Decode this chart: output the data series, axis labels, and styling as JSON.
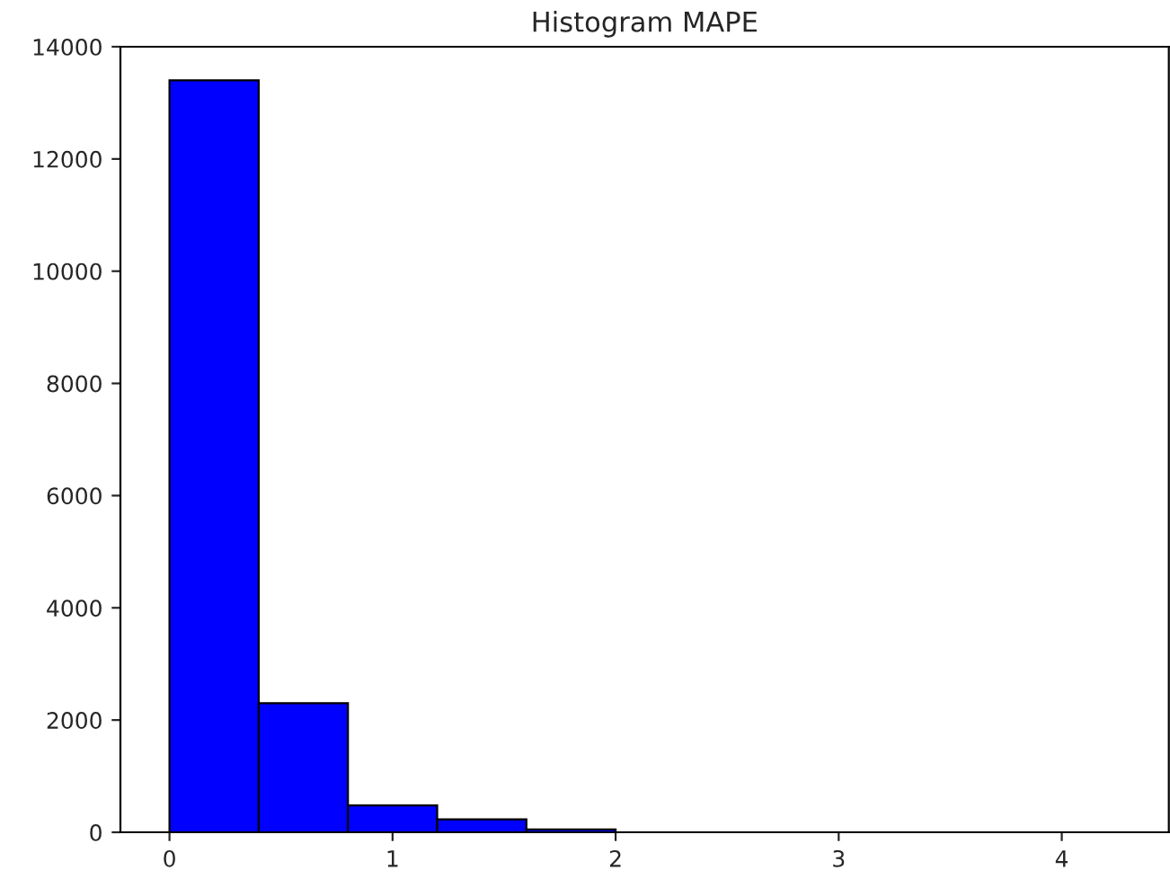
{
  "chart_data": {
    "type": "histogram",
    "title": "Histogram MAPE",
    "bins": [
      0,
      0.4,
      0.8,
      1.2,
      1.6,
      2.0,
      2.4,
      2.8,
      3.2
    ],
    "values": [
      13400,
      2300,
      480,
      230,
      50,
      null,
      null,
      null
    ],
    "color": "#0000ff",
    "xlim": [
      -0.22,
      4.48
    ],
    "xticks": [
      0,
      1,
      2,
      3,
      4
    ],
    "ylim": [
      0,
      14000
    ],
    "yticks": [
      0,
      2000,
      4000,
      6000,
      8000,
      10000,
      12000,
      14000
    ],
    "grid": false
  }
}
